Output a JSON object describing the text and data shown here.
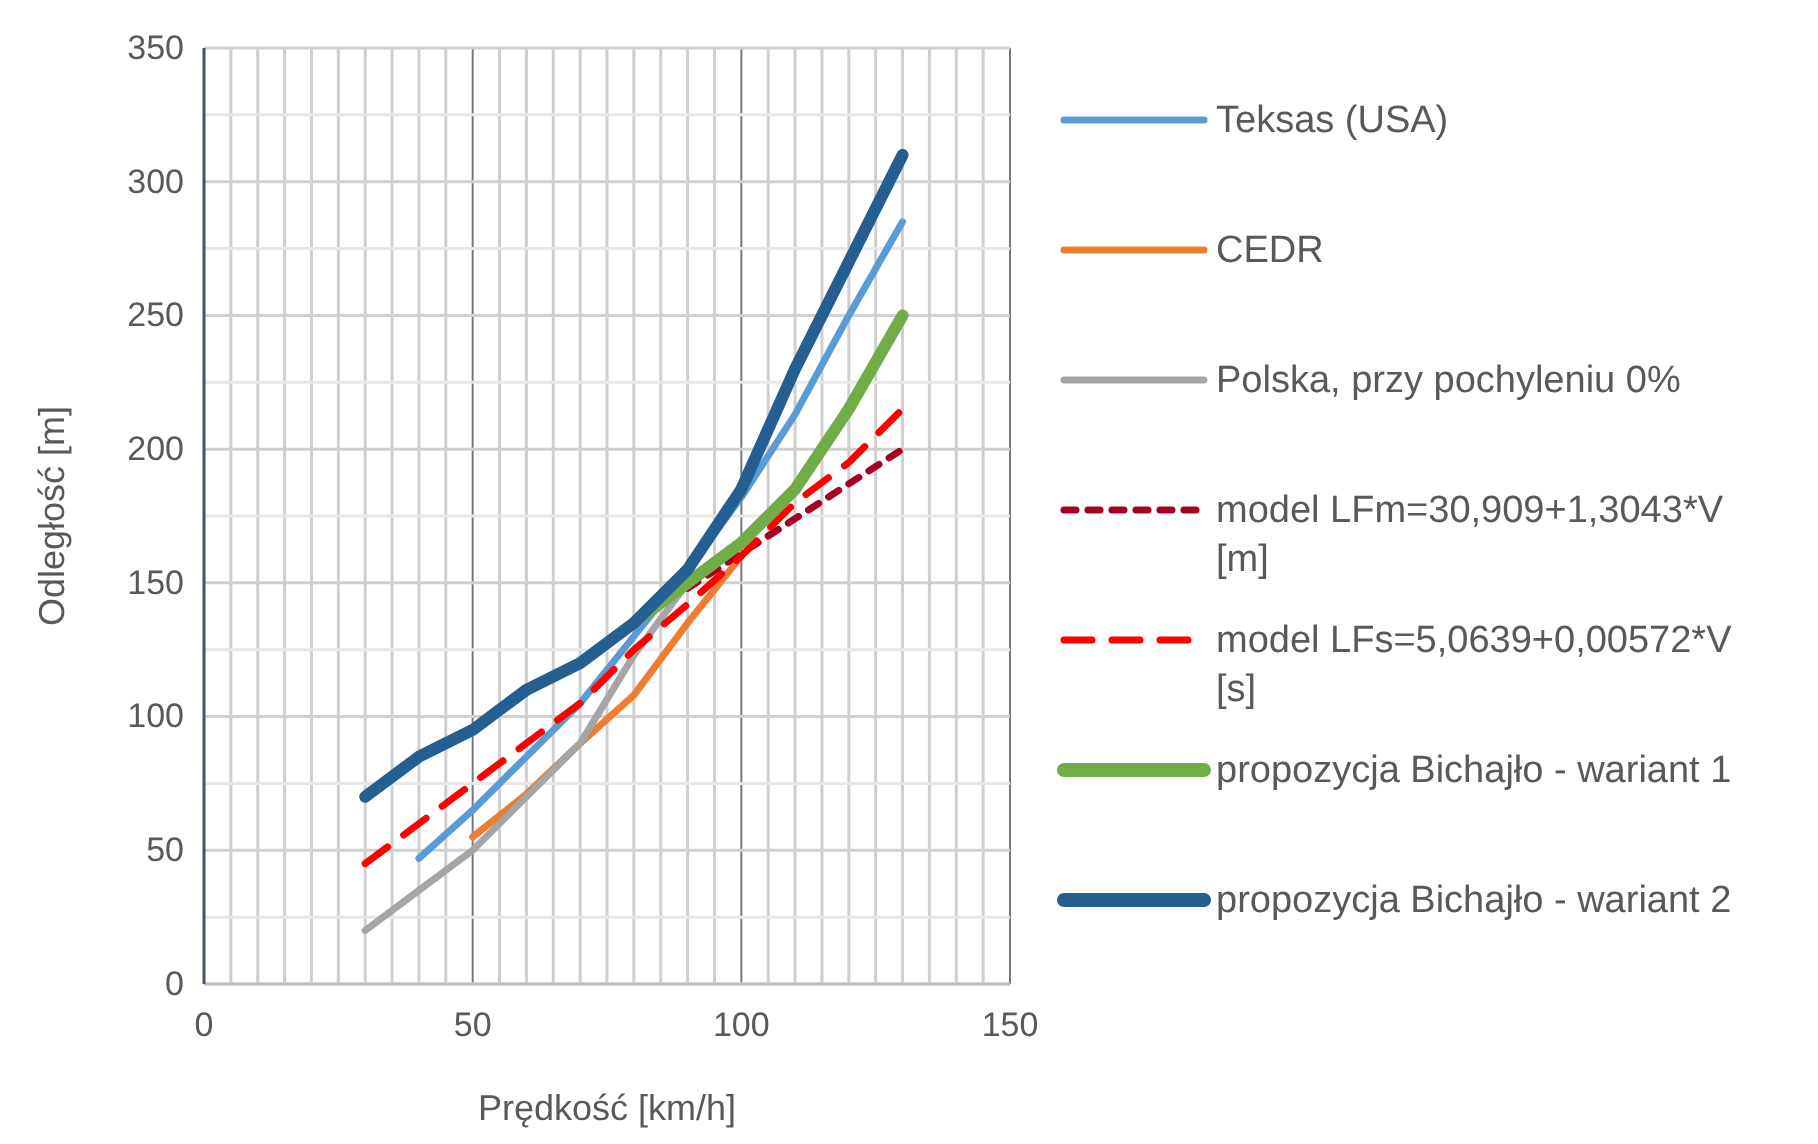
{
  "chart_data": {
    "type": "line",
    "xlabel": "Prędkość [km/h]",
    "ylabel": "Odległość [m]",
    "xlim": [
      0,
      150
    ],
    "xticks": [
      0,
      50,
      100,
      150
    ],
    "ylim": [
      0,
      350
    ],
    "yticks": [
      0,
      50,
      100,
      150,
      200,
      250,
      300,
      350
    ],
    "grid": true,
    "legend": "right",
    "marker": "none",
    "series": [
      {
        "name": "Teksas (USA)",
        "color": "#5b9bd5",
        "line_style": "solid",
        "x": [
          40,
          50,
          60,
          70,
          80,
          90,
          100,
          110,
          120,
          130
        ],
        "values": [
          47,
          65,
          85,
          105,
          130,
          155,
          182,
          213,
          250,
          285
        ]
      },
      {
        "name": "CEDR",
        "color": "#ed7d31",
        "line_style": "solid",
        "x": [
          50,
          60,
          70,
          80,
          90,
          100
        ],
        "values": [
          55,
          71,
          90,
          108,
          135,
          160
        ]
      },
      {
        "name": "Polska, przy pochyleniu 0%",
        "color": "#a5a5a5",
        "line_style": "solid",
        "x": [
          30,
          40,
          50,
          60,
          70,
          80,
          90,
          100
        ],
        "values": [
          20,
          35,
          50,
          70,
          90,
          123,
          150,
          165
        ]
      },
      {
        "name": "model LFm=30,909+1,3043*V [m]",
        "color": "#a50021",
        "line_style": "dotted",
        "x": [
          90,
          100,
          110,
          120,
          130
        ],
        "values": [
          148,
          161,
          174,
          187,
          200
        ]
      },
      {
        "name": "model LFs=5,0639+0,00572*V [s]",
        "color": "#ff0000",
        "line_style": "dashed",
        "x": [
          30,
          40,
          50,
          60,
          70,
          80,
          90,
          100,
          110,
          120,
          130
        ],
        "values": [
          45,
          60,
          75,
          90,
          105,
          125,
          142,
          160,
          180,
          195,
          215
        ]
      },
      {
        "name": "propozycja Bichajło - wariant 1",
        "color": "#70ad47",
        "line_style": "solid",
        "x": [
          80,
          90,
          100,
          110,
          120,
          130
        ],
        "values": [
          135,
          150,
          165,
          185,
          215,
          250
        ]
      },
      {
        "name": "propozycja Bichajło - wariant 2",
        "color": "#255e91",
        "line_style": "solid",
        "x": [
          30,
          40,
          50,
          60,
          70,
          80,
          90,
          100,
          110,
          120,
          130
        ],
        "values": [
          70,
          85,
          95,
          110,
          120,
          135,
          155,
          185,
          230,
          270,
          310
        ]
      }
    ]
  }
}
